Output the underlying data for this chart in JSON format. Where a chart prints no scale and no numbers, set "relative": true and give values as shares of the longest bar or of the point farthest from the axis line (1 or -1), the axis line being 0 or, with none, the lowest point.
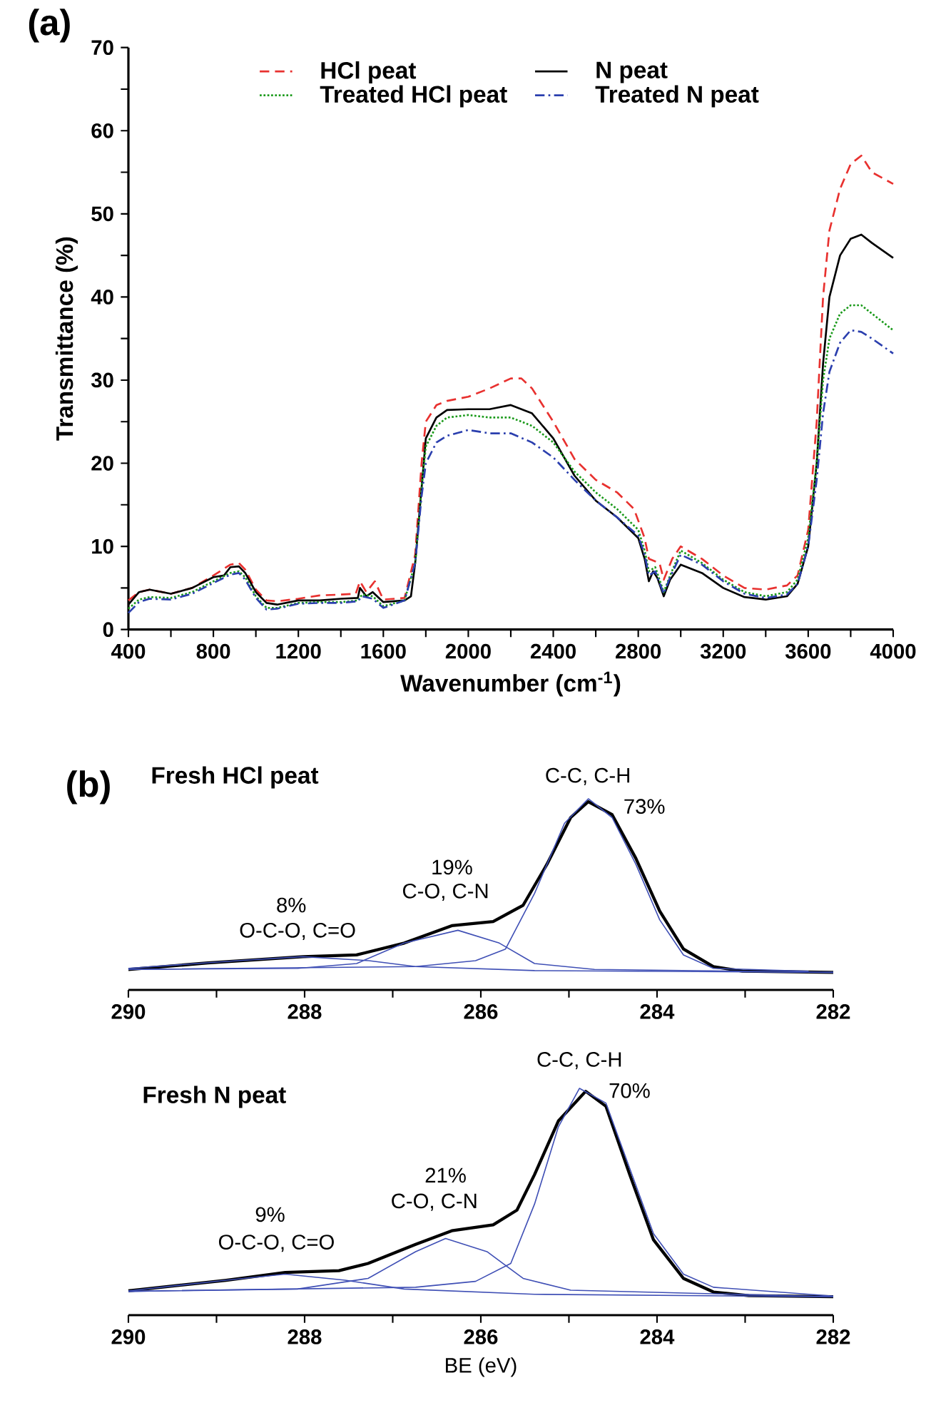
{
  "chart_data": [
    {
      "type": "line",
      "title": "(a)",
      "xlabel": "Wavenumber (cm$^{-1}$)",
      "ylabel": "Transmittance (%)",
      "xlim": [
        400,
        4000
      ],
      "ylim": [
        0,
        70
      ],
      "xticks": [
        400,
        {
          "value": 600,
          "label": null
        },
        800,
        {
          "value": 1000,
          "label": null
        },
        1200,
        {
          "value": 1400,
          "label": null
        },
        1600,
        {
          "value": 1800,
          "label": null
        },
        2000,
        {
          "value": 2200,
          "label": null
        },
        2400,
        {
          "value": 2600,
          "label": null
        },
        2800,
        {
          "value": 3000,
          "label": null
        },
        3200,
        {
          "value": 3400,
          "label": null
        },
        3600,
        {
          "value": 3800,
          "label": null
        },
        4000
      ],
      "yticks": [
        0,
        {
          "value": 5,
          "label": null
        },
        10,
        {
          "value": 15,
          "label": null
        },
        20,
        {
          "value": 25,
          "label": null
        },
        30,
        {
          "value": 35,
          "label": null
        },
        40,
        {
          "value": 45,
          "label": null
        },
        50,
        {
          "value": 55,
          "label": null
        },
        60,
        {
          "value": 65,
          "label": null
        },
        70
      ],
      "legend": "top",
      "series": [
        {
          "name": "HCl peat",
          "color": "#e8312f",
          "line_style": "dashed",
          "x": [
            400,
            450,
            500,
            600,
            700,
            800,
            880,
            920,
            950,
            1000,
            1050,
            1100,
            1200,
            1300,
            1400,
            1470,
            1490,
            1520,
            1560,
            1600,
            1700,
            1750,
            1780,
            1800,
            1850,
            1900,
            2000,
            2100,
            2200,
            2250,
            2300,
            2400,
            2500,
            2600,
            2700,
            2780,
            2830,
            2850,
            2900,
            2920,
            2960,
            3000,
            3100,
            3200,
            3300,
            3400,
            3500,
            3550,
            3600,
            3640,
            3670,
            3700,
            3750,
            3800,
            3850,
            3900,
            4000
          ],
          "values": [
            3.5,
            4.5,
            4.8,
            4.3,
            5.0,
            6.5,
            7.8,
            8.0,
            7.2,
            4.8,
            3.5,
            3.4,
            3.7,
            4.1,
            4.2,
            4.3,
            5.8,
            4.5,
            5.8,
            3.6,
            3.8,
            9,
            20,
            25,
            27,
            27.5,
            28.0,
            29.0,
            30.2,
            30.2,
            29.0,
            25.0,
            20.5,
            18.0,
            16.5,
            14.5,
            11,
            8.5,
            8.0,
            6.0,
            8.5,
            10.0,
            8.5,
            6.5,
            5.0,
            4.8,
            5.3,
            6.5,
            12,
            25,
            40,
            48,
            53,
            56,
            57,
            55,
            53.6
          ]
        },
        {
          "name": "N peat",
          "color": "#000000",
          "line_style": "solid",
          "x": [
            400,
            450,
            500,
            600,
            700,
            800,
            850,
            880,
            920,
            950,
            1000,
            1050,
            1100,
            1200,
            1300,
            1400,
            1480,
            1490,
            1520,
            1550,
            1600,
            1700,
            1730,
            1750,
            1780,
            1800,
            1850,
            1900,
            2000,
            2100,
            2200,
            2300,
            2400,
            2500,
            2600,
            2700,
            2800,
            2830,
            2850,
            2870,
            2890,
            2920,
            2950,
            3000,
            3100,
            3200,
            3300,
            3400,
            3500,
            3550,
            3600,
            3640,
            3670,
            3700,
            3750,
            3800,
            3850,
            3900,
            4000
          ],
          "values": [
            3.0,
            4.5,
            4.8,
            4.3,
            5.0,
            6.3,
            6.5,
            7.5,
            7.6,
            6.8,
            4.5,
            3.2,
            3.0,
            3.5,
            3.5,
            3.7,
            3.8,
            5.0,
            4.0,
            4.5,
            3.3,
            3.5,
            4.0,
            8,
            17,
            23,
            25.5,
            26.4,
            26.5,
            26.5,
            27.0,
            26.0,
            23.0,
            18.5,
            15.5,
            13.5,
            11.0,
            8.5,
            5.8,
            7.0,
            6.2,
            4.0,
            6.0,
            7.8,
            6.8,
            5.0,
            3.9,
            3.6,
            4.0,
            5.5,
            10,
            20,
            32,
            40,
            45,
            47,
            47.5,
            46.5,
            44.7
          ]
        },
        {
          "name": "Treated HCl peat",
          "color": "#1a9a1a",
          "line_style": "dotted",
          "x": [
            400,
            450,
            500,
            600,
            700,
            800,
            880,
            920,
            950,
            1000,
            1050,
            1100,
            1200,
            1300,
            1400,
            1480,
            1500,
            1550,
            1600,
            1700,
            1750,
            1780,
            1800,
            1850,
            1900,
            2000,
            2100,
            2200,
            2300,
            2400,
            2500,
            2600,
            2700,
            2800,
            2830,
            2850,
            2880,
            2920,
            2950,
            3000,
            3100,
            3200,
            3300,
            3400,
            3500,
            3550,
            3600,
            3640,
            3670,
            3700,
            3750,
            3800,
            3850,
            3900,
            4000
          ],
          "values": [
            2.5,
            3.6,
            3.9,
            3.8,
            4.5,
            5.8,
            6.8,
            7.0,
            6.3,
            4.0,
            2.6,
            2.6,
            3.2,
            3.3,
            3.3,
            3.5,
            4.2,
            4.0,
            2.8,
            3.5,
            8,
            17,
            22,
            24.5,
            25.5,
            25.8,
            25.5,
            25.5,
            24.5,
            22.5,
            19.0,
            16.5,
            14.5,
            12.0,
            9.5,
            7.0,
            7.5,
            4.5,
            6.5,
            9.5,
            8.0,
            6.0,
            4.5,
            4.0,
            4.5,
            6.0,
            11,
            20,
            30,
            35,
            38,
            39,
            39,
            38,
            36
          ]
        },
        {
          "name": "Treated N peat",
          "color": "#2b3fae",
          "line_style": "dashdot",
          "x": [
            400,
            450,
            500,
            600,
            700,
            800,
            880,
            920,
            950,
            1000,
            1050,
            1100,
            1200,
            1300,
            1400,
            1480,
            1500,
            1550,
            1600,
            1700,
            1750,
            1780,
            1800,
            1850,
            1900,
            2000,
            2100,
            2200,
            2300,
            2400,
            2500,
            2600,
            2700,
            2800,
            2830,
            2850,
            2880,
            2920,
            2950,
            3000,
            3100,
            3200,
            3300,
            3400,
            3500,
            3550,
            3600,
            3640,
            3670,
            3700,
            3750,
            3800,
            3850,
            3900,
            4000
          ],
          "values": [
            2.0,
            3.3,
            3.7,
            3.6,
            4.3,
            5.6,
            6.6,
            6.8,
            6.0,
            3.8,
            2.4,
            2.5,
            3.1,
            3.2,
            3.2,
            3.4,
            4.0,
            3.7,
            2.6,
            3.5,
            8,
            16,
            20,
            22.5,
            23.3,
            24.0,
            23.6,
            23.6,
            22.5,
            20.7,
            18.0,
            15.5,
            13.5,
            11.3,
            9.0,
            6.5,
            7.0,
            4.3,
            6.3,
            9.0,
            7.8,
            5.8,
            4.3,
            3.8,
            4.2,
            5.5,
            10,
            18,
            26,
            31,
            34.5,
            36,
            35.8,
            35,
            33.2
          ]
        }
      ]
    },
    {
      "type": "line",
      "title": "(b)",
      "subtitle": "Fresh HCl peat",
      "relative": true,
      "tick_labels": "x",
      "xlim": [
        290,
        282
      ],
      "xticks": [
        290,
        {
          "value": 289,
          "label": null
        },
        288,
        {
          "value": 287,
          "label": null
        },
        286,
        {
          "value": 285,
          "label": null
        },
        284,
        {
          "value": 283,
          "label": null
        },
        282
      ],
      "annotations": [
        "C-C, C-H",
        "73%",
        "19%",
        "C-O, C-N",
        "8%",
        "O-C-O, C=O"
      ],
      "series": [
        {
          "color": "#000000",
          "x": [
            290,
            289.1,
            288.02,
            287.41,
            286.87,
            286.33,
            285.86,
            285.52,
            285.25,
            284.98,
            284.78,
            284.51,
            284.24,
            283.97,
            283.7,
            283.36,
            283.03,
            282.0
          ],
          "values": [
            0.107,
            0.141,
            0.174,
            0.183,
            0.245,
            0.336,
            0.358,
            0.443,
            0.657,
            0.902,
            0.985,
            0.917,
            0.688,
            0.413,
            0.214,
            0.122,
            0.098,
            0.092
          ]
        },
        {
          "color": "#3f4fb5",
          "x": [
            290,
            288.76,
            288.02,
            287.27,
            286.74,
            285.39,
            282.0
          ],
          "values": [
            0.113,
            0.153,
            0.174,
            0.153,
            0.122,
            0.101,
            0.092
          ]
        },
        {
          "color": "#3f4fb5",
          "x": [
            290,
            288.08,
            287.41,
            286.87,
            286.26,
            285.79,
            285.39,
            284.71,
            282.0
          ],
          "values": [
            0.107,
            0.113,
            0.138,
            0.245,
            0.312,
            0.245,
            0.138,
            0.107,
            0.092
          ]
        },
        {
          "color": "#3f4fb5",
          "x": [
            290,
            286.74,
            286.06,
            285.72,
            285.39,
            285.05,
            284.78,
            284.51,
            284.24,
            283.97,
            283.7,
            283.36,
            282.28
          ],
          "values": [
            0.107,
            0.122,
            0.153,
            0.214,
            0.505,
            0.872,
            1.0,
            0.902,
            0.657,
            0.367,
            0.183,
            0.113,
            0.098
          ]
        }
      ]
    },
    {
      "type": "line",
      "title": "Fresh N peat",
      "xlabel": "BE (eV)",
      "relative": true,
      "tick_labels": "x",
      "xlim": [
        290,
        282
      ],
      "xticks": [
        290,
        {
          "value": 289,
          "label": null
        },
        288,
        {
          "value": 287,
          "label": null
        },
        286,
        {
          "value": 285,
          "label": null
        },
        284,
        {
          "value": 283,
          "label": null
        },
        282
      ],
      "annotations": [
        "C-C, C-H",
        "70%",
        "21%",
        "C-O, C-N",
        "9%",
        "O-C-O, C=O"
      ],
      "series": [
        {
          "color": "#000000",
          "x": [
            290,
            288.89,
            288.22,
            287.61,
            287.28,
            286.74,
            286.33,
            285.86,
            285.59,
            285.39,
            285.12,
            284.81,
            284.58,
            284.31,
            284.04,
            283.7,
            283.36,
            282.96,
            282.0
          ],
          "values": [
            0.107,
            0.154,
            0.188,
            0.196,
            0.228,
            0.312,
            0.372,
            0.398,
            0.463,
            0.62,
            0.856,
            0.987,
            0.921,
            0.62,
            0.332,
            0.162,
            0.102,
            0.086,
            0.081
          ]
        },
        {
          "color": "#3f4fb5",
          "x": [
            290,
            288.89,
            288.22,
            287.54,
            286.87,
            285.39,
            282.0
          ],
          "values": [
            0.107,
            0.154,
            0.181,
            0.154,
            0.115,
            0.092,
            0.081
          ]
        },
        {
          "color": "#3f4fb5",
          "x": [
            290,
            288.08,
            287.28,
            286.74,
            286.4,
            285.93,
            285.52,
            284.98,
            282.0
          ],
          "values": [
            0.105,
            0.115,
            0.162,
            0.28,
            0.338,
            0.28,
            0.162,
            0.11,
            0.081
          ]
        },
        {
          "color": "#3f4fb5",
          "x": [
            290,
            286.74,
            286.06,
            285.66,
            285.39,
            285.12,
            284.88,
            284.58,
            284.31,
            284.04,
            283.7,
            283.36,
            282.0
          ],
          "values": [
            0.105,
            0.123,
            0.149,
            0.228,
            0.49,
            0.83,
            1.0,
            0.935,
            0.647,
            0.359,
            0.181,
            0.123,
            0.084
          ]
        }
      ]
    }
  ]
}
